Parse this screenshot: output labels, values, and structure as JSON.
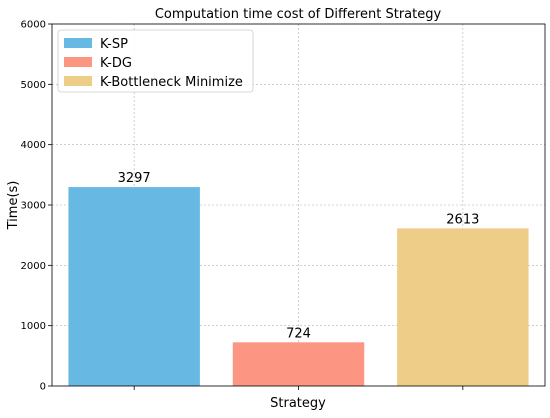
{
  "chart_data": {
    "type": "bar",
    "title": "Computation time cost of Different Strategy",
    "xlabel": "Strategy",
    "ylabel": "Time(s)",
    "ylim": [
      0,
      6000
    ],
    "yticks": [
      0,
      1000,
      2000,
      3000,
      4000,
      5000,
      6000
    ],
    "grid": true,
    "legend_position": "top-left",
    "series": [
      {
        "name": "K-SP",
        "value": 3297,
        "label": "3297",
        "color": "#67b9e4"
      },
      {
        "name": "K-DG",
        "value": 724,
        "label": "724",
        "color": "#fc9581"
      },
      {
        "name": "K-Bottleneck Minimize",
        "value": 2613,
        "label": "2613",
        "color": "#eecd89"
      }
    ]
  }
}
